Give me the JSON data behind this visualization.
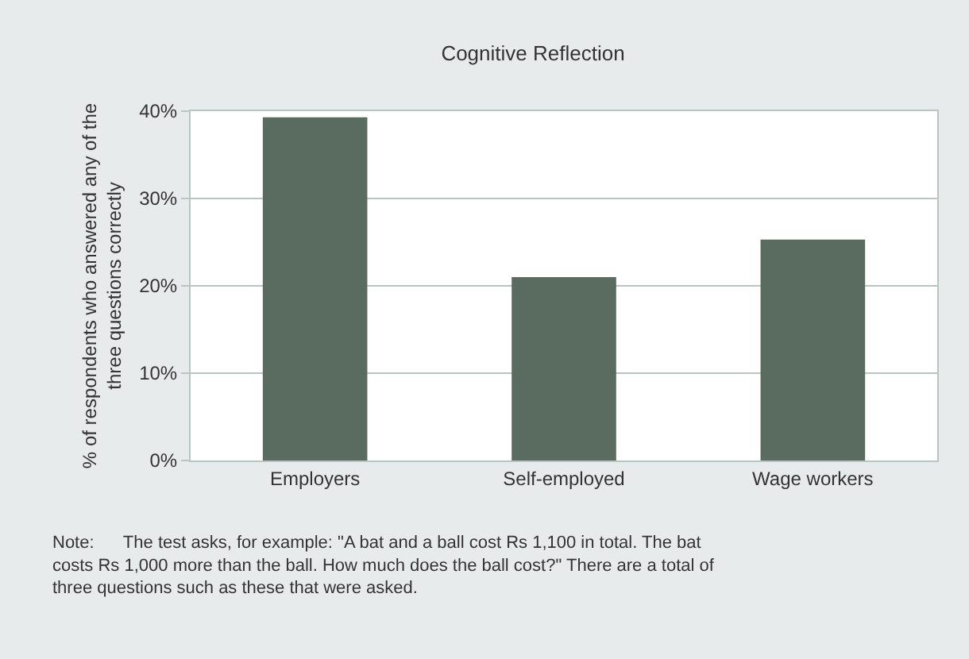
{
  "chart_data": {
    "type": "bar",
    "title": "Cognitive Reflection",
    "ylabel": "% of respondents who answered any of the three questions correctly",
    "categories": [
      "Employers",
      "Self-employed",
      "Wage workers"
    ],
    "values": [
      39.3,
      21,
      25.3
    ],
    "color": "#5a6b60",
    "ylim": [
      0,
      40
    ],
    "yticks": [
      {
        "value": 0,
        "label": "0%"
      },
      {
        "value": 10,
        "label": "10%"
      },
      {
        "value": 20,
        "label": "20%"
      },
      {
        "value": 30,
        "label": "30%"
      },
      {
        "value": 40,
        "label": "40%"
      }
    ],
    "grid": "y",
    "annotations": [
      "Note:      The test asks, for example: \"A bat and a ball cost Rs 1,100 in total. The bat costs Rs 1,000 more than the ball. How much does the ball cost?\" There are a total of three questions such as these that were asked."
    ]
  }
}
